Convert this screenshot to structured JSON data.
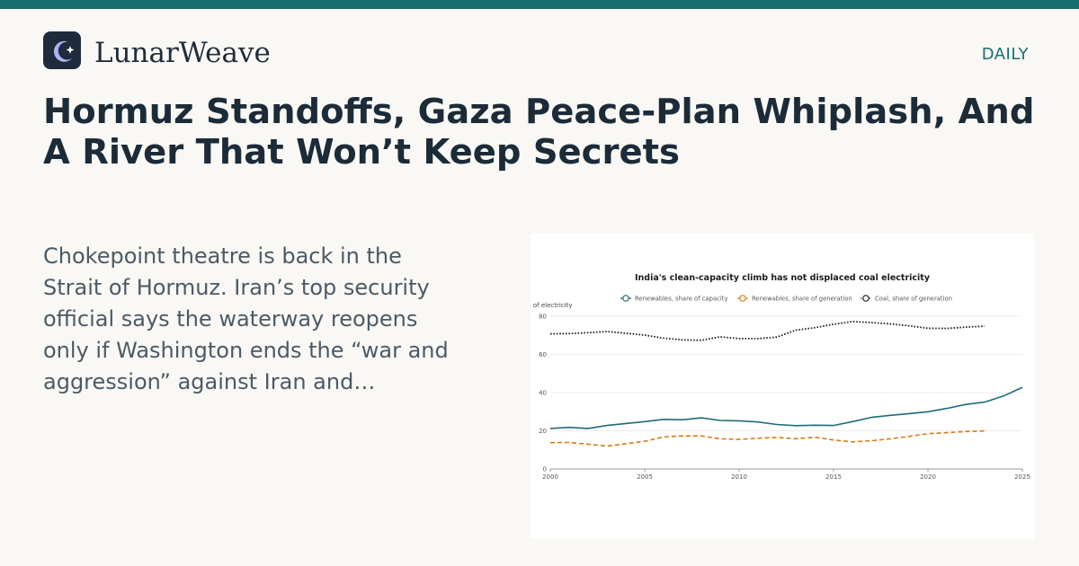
{
  "brand": {
    "name": "LunarWeave",
    "logo_icon": "crescent-moon-sparkle-icon",
    "logo_bg": "#1f2b3d",
    "logo_moon": "#a9b4f2"
  },
  "section_label": "DAILY",
  "headline": "Hormuz Standoffs, Gaza Peace-Plan Whiplash, And A River That Won’t Keep Secrets",
  "summary": "Chokepoint theatre is back in the Strait of Hormuz. Iran’s top security official says the waterway reopens only if Washington ends the “war and aggression” against Iran and…",
  "colors": {
    "accent": "#17706f",
    "renewables_capacity": "#1f6b7a",
    "renewables_generation": "#d97a12",
    "coal_generation": "#222222"
  },
  "chart_data": {
    "type": "line",
    "title": "India's clean-capacity climb has not displaced coal electricity",
    "ylabel": "% of electricity",
    "xlabel": "",
    "xlim": [
      2000,
      2025
    ],
    "ylim": [
      0,
      80
    ],
    "x_ticks": [
      2000,
      2005,
      2010,
      2015,
      2020,
      2025
    ],
    "y_ticks": [
      0,
      20,
      40,
      60,
      80
    ],
    "grid": true,
    "legend_position": "top-center",
    "series": [
      {
        "name": "Renewables, share of capacity",
        "style": "solid",
        "color": "#1f6b7a",
        "x": [
          2000,
          2001,
          2002,
          2003,
          2004,
          2005,
          2006,
          2007,
          2008,
          2009,
          2010,
          2011,
          2012,
          2013,
          2014,
          2015,
          2016,
          2017,
          2018,
          2019,
          2020,
          2021,
          2022,
          2023,
          2024,
          2025
        ],
        "y": [
          21.2,
          21.8,
          21.2,
          22.8,
          23.8,
          24.8,
          26,
          25.8,
          26.8,
          25.4,
          25.2,
          24.6,
          23.3,
          22.7,
          22.9,
          22.8,
          24.8,
          27,
          28.1,
          29,
          30,
          31.7,
          33.8,
          35,
          38.2,
          42.8
        ]
      },
      {
        "name": "Renewables, share of generation",
        "style": "dashed",
        "color": "#d97a12",
        "x": [
          2000,
          2001,
          2002,
          2003,
          2004,
          2005,
          2006,
          2007,
          2008,
          2009,
          2010,
          2011,
          2012,
          2013,
          2014,
          2015,
          2016,
          2017,
          2018,
          2019,
          2020,
          2021,
          2022,
          2023
        ],
        "y": [
          13.8,
          13.9,
          13,
          12,
          13.2,
          14.5,
          16.8,
          17.3,
          17.3,
          15.8,
          15.5,
          16.1,
          16.5,
          15.8,
          16.6,
          15.2,
          14.2,
          14.8,
          15.8,
          17.1,
          18.5,
          19,
          19.6,
          19.9
        ]
      },
      {
        "name": "Coal, share of generation",
        "style": "dotted",
        "color": "#222222",
        "x": [
          2000,
          2001,
          2002,
          2003,
          2004,
          2005,
          2006,
          2007,
          2008,
          2009,
          2010,
          2011,
          2012,
          2013,
          2014,
          2015,
          2016,
          2017,
          2018,
          2019,
          2020,
          2021,
          2022,
          2023
        ],
        "y": [
          70.8,
          70.9,
          71.4,
          72,
          71.1,
          70.1,
          68.5,
          67.6,
          67.4,
          69.2,
          68.3,
          68.3,
          69.1,
          72.7,
          74,
          75.8,
          77.2,
          76.7,
          76,
          75,
          73.7,
          73.6,
          74.3,
          74.8
        ]
      }
    ]
  }
}
